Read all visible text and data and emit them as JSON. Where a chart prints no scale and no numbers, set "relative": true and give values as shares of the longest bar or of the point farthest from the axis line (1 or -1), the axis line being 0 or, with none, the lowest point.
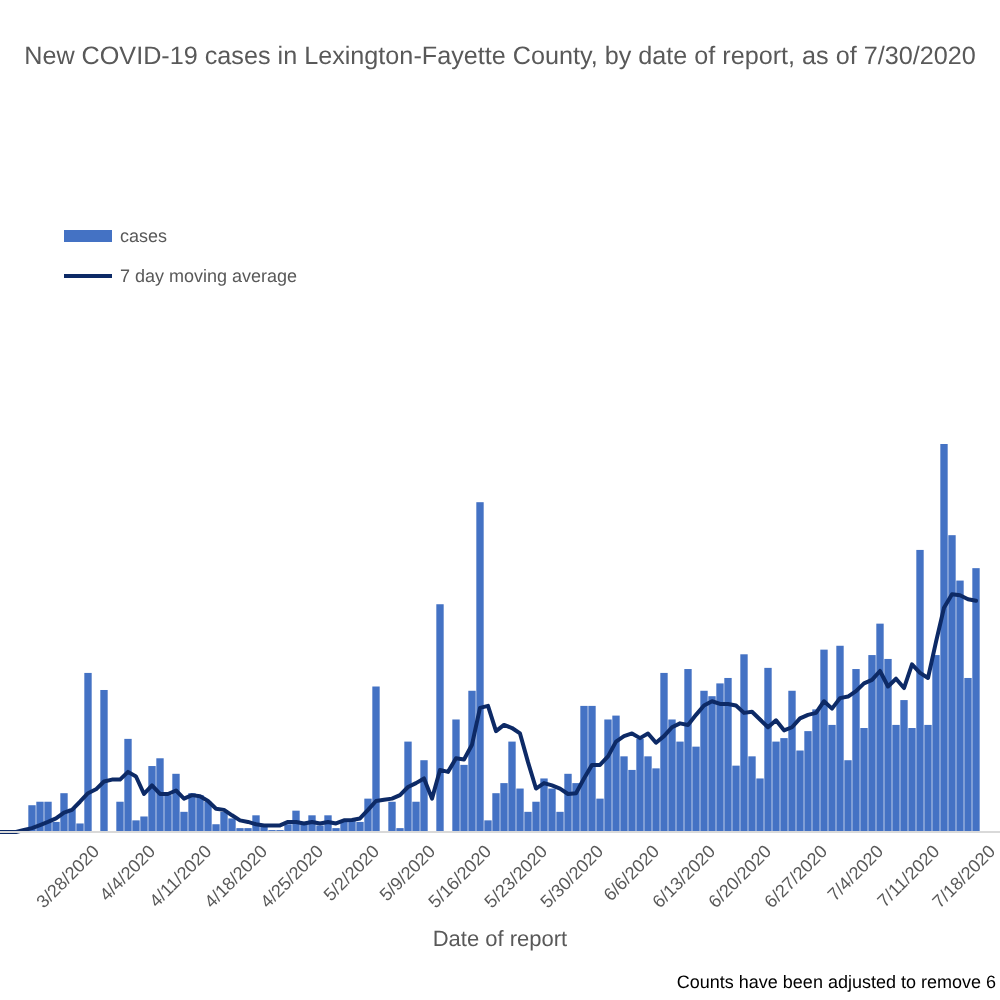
{
  "chart_data": {
    "type": "bar",
    "title": "New COVID-19 cases in Lexington-Fayette County, by date of report, as of 7/30/2020",
    "xlabel": "Date of report",
    "annotations": [
      "Counts have been adjusted to remove 6"
    ],
    "relative": true,
    "legend": "top left",
    "x": [
      "2020-03-16",
      "2020-03-17",
      "2020-03-18",
      "2020-03-19",
      "2020-03-20",
      "2020-03-21",
      "2020-03-22",
      "2020-03-23",
      "2020-03-24",
      "2020-03-25",
      "2020-03-26",
      "2020-03-27",
      "2020-03-28",
      "2020-03-29",
      "2020-03-30",
      "2020-03-31",
      "2020-04-01",
      "2020-04-02",
      "2020-04-03",
      "2020-04-04",
      "2020-04-05",
      "2020-04-06",
      "2020-04-07",
      "2020-04-08",
      "2020-04-09",
      "2020-04-10",
      "2020-04-11",
      "2020-04-12",
      "2020-04-13",
      "2020-04-14",
      "2020-04-15",
      "2020-04-16",
      "2020-04-17",
      "2020-04-18",
      "2020-04-19",
      "2020-04-20",
      "2020-04-21",
      "2020-04-22",
      "2020-04-23",
      "2020-04-24",
      "2020-04-25",
      "2020-04-26",
      "2020-04-27",
      "2020-04-28",
      "2020-04-29",
      "2020-04-30",
      "2020-05-01",
      "2020-05-02",
      "2020-05-03",
      "2020-05-04",
      "2020-05-05",
      "2020-05-06",
      "2020-05-07",
      "2020-05-08",
      "2020-05-09",
      "2020-05-10",
      "2020-05-11",
      "2020-05-12",
      "2020-05-13",
      "2020-05-14",
      "2020-05-15",
      "2020-05-16",
      "2020-05-17",
      "2020-05-18",
      "2020-05-19",
      "2020-05-20",
      "2020-05-21",
      "2020-05-22",
      "2020-05-23",
      "2020-05-24",
      "2020-05-25",
      "2020-05-26",
      "2020-05-27",
      "2020-05-28",
      "2020-05-29",
      "2020-05-30",
      "2020-05-31",
      "2020-06-01",
      "2020-06-02",
      "2020-06-03",
      "2020-06-04",
      "2020-06-05",
      "2020-06-06",
      "2020-06-07",
      "2020-06-08",
      "2020-06-09",
      "2020-06-10",
      "2020-06-11",
      "2020-06-12",
      "2020-06-13",
      "2020-06-14",
      "2020-06-15",
      "2020-06-16",
      "2020-06-17",
      "2020-06-18",
      "2020-06-19",
      "2020-06-20",
      "2020-06-21",
      "2020-06-22",
      "2020-06-23",
      "2020-06-24",
      "2020-06-25",
      "2020-06-26",
      "2020-06-27",
      "2020-06-28",
      "2020-06-29",
      "2020-06-30",
      "2020-07-01",
      "2020-07-02",
      "2020-07-03",
      "2020-07-04",
      "2020-07-05",
      "2020-07-06",
      "2020-07-07",
      "2020-07-08",
      "2020-07-09",
      "2020-07-10",
      "2020-07-11",
      "2020-07-12",
      "2020-07-13",
      "2020-07-14",
      "2020-07-15",
      "2020-07-16"
    ],
    "xlim": [
      "2020-03-16",
      "2020-07-19"
    ],
    "xticks": [
      {
        "value": "2020-03-28",
        "label": "3/28/2020"
      },
      {
        "value": "2020-04-04",
        "label": "4/4/2020"
      },
      {
        "value": "2020-04-11",
        "label": "4/11/2020"
      },
      {
        "value": "2020-04-18",
        "label": "4/18/2020"
      },
      {
        "value": "2020-04-25",
        "label": "4/25/2020"
      },
      {
        "value": "2020-05-02",
        "label": "5/2/2020"
      },
      {
        "value": "2020-05-09",
        "label": "5/9/2020"
      },
      {
        "value": "2020-05-16",
        "label": "5/16/2020"
      },
      {
        "value": "2020-05-23",
        "label": "5/23/2020"
      },
      {
        "value": "2020-05-30",
        "label": "5/30/2020"
      },
      {
        "value": "2020-06-06",
        "label": "6/6/2020"
      },
      {
        "value": "2020-06-13",
        "label": "6/13/2020"
      },
      {
        "value": "2020-06-20",
        "label": "6/20/2020"
      },
      {
        "value": "2020-06-27",
        "label": "6/27/2020"
      },
      {
        "value": "2020-07-04",
        "label": "7/4/2020"
      },
      {
        "value": "2020-07-11",
        "label": "7/11/2020"
      },
      {
        "value": "2020-07-18",
        "label": "7/18/2020"
      }
    ],
    "series": [
      {
        "name": "cases",
        "color": "#4472c4",
        "values": [
          null,
          null,
          null,
          null,
          0.069,
          0.078,
          0.078,
          0.026,
          0.1,
          0.06,
          0.022,
          0.41,
          0,
          0.366,
          0,
          0.078,
          0.24,
          0.03,
          0.04,
          0.17,
          0.19,
          0.095,
          0.15,
          0.052,
          0.1,
          0.095,
          0.078,
          0.02,
          0.052,
          0.035,
          0.01,
          0.01,
          0.043,
          0.02,
          0.005,
          0.005,
          0.02,
          0.055,
          0.02,
          0.043,
          0.017,
          0.043,
          0.01,
          0.03,
          0.03,
          0.026,
          0.086,
          0.375,
          0,
          0.078,
          0.01,
          0.233,
          0.078,
          0.185,
          0,
          0.587,
          0,
          0.29,
          0.173,
          0.364,
          0.85,
          0.03,
          0.1,
          0.126,
          0.233,
          0.112,
          0.052,
          0.078,
          0.138,
          0.112,
          0.052,
          0.15,
          0.126,
          0.325,
          0.325,
          0.086,
          0.29,
          0.3,
          0.195,
          0.16,
          0.24,
          0.195,
          0.164,
          0.41,
          0.29,
          0.233,
          0.42,
          0.22,
          0.364,
          0.35,
          0.383,
          0.397,
          0.171,
          0.458,
          0.195,
          0.138,
          0.423,
          0.233,
          0.242,
          0.364,
          0.21,
          0.26,
          0.316,
          0.47,
          0.276,
          0.48,
          0.185,
          0.42,
          0.268,
          0.456,
          0.537,
          0.446,
          0.276,
          0.34,
          0.268,
          0.727,
          0.276,
          0.456,
          1,
          0.765,
          0.648,
          0.397,
          0.68
        ]
      },
      {
        "name": "7 day moving average",
        "type": "line",
        "color": "#0d2a66",
        "values": [
          0,
          0,
          0,
          0.005,
          0.01,
          0.018,
          0.026,
          0.035,
          0.05,
          0.057,
          0.078,
          0.1,
          0.11,
          0.13,
          0.135,
          0.135,
          0.155,
          0.143,
          0.098,
          0.12,
          0.098,
          0.098,
          0.107,
          0.086,
          0.095,
          0.092,
          0.08,
          0.06,
          0.057,
          0.043,
          0.03,
          0.026,
          0.02,
          0.017,
          0.017,
          0.017,
          0.026,
          0.026,
          0.022,
          0.026,
          0.022,
          0.026,
          0.022,
          0.03,
          0.031,
          0.035,
          0.057,
          0.08,
          0.083,
          0.086,
          0.095,
          0.116,
          0.126,
          0.138,
          0.086,
          0.16,
          0.155,
          0.19,
          0.187,
          0.225,
          0.32,
          0.325,
          0.26,
          0.276,
          0.268,
          0.254,
          0.18,
          0.112,
          0.126,
          0.12,
          0.112,
          0.098,
          0.1,
          0.138,
          0.173,
          0.173,
          0.195,
          0.233,
          0.247,
          0.254,
          0.242,
          0.254,
          0.23,
          0.247,
          0.27,
          0.28,
          0.276,
          0.302,
          0.326,
          0.337,
          0.33,
          0.33,
          0.326,
          0.307,
          0.31,
          0.29,
          0.27,
          0.288,
          0.262,
          0.27,
          0.293,
          0.302,
          0.307,
          0.337,
          0.318,
          0.345,
          0.349,
          0.363,
          0.383,
          0.392,
          0.415,
          0.375,
          0.395,
          0.371,
          0.432,
          0.41,
          0.397,
          0.49,
          0.578,
          0.613,
          0.61,
          0.6,
          0.596
        ]
      }
    ]
  }
}
